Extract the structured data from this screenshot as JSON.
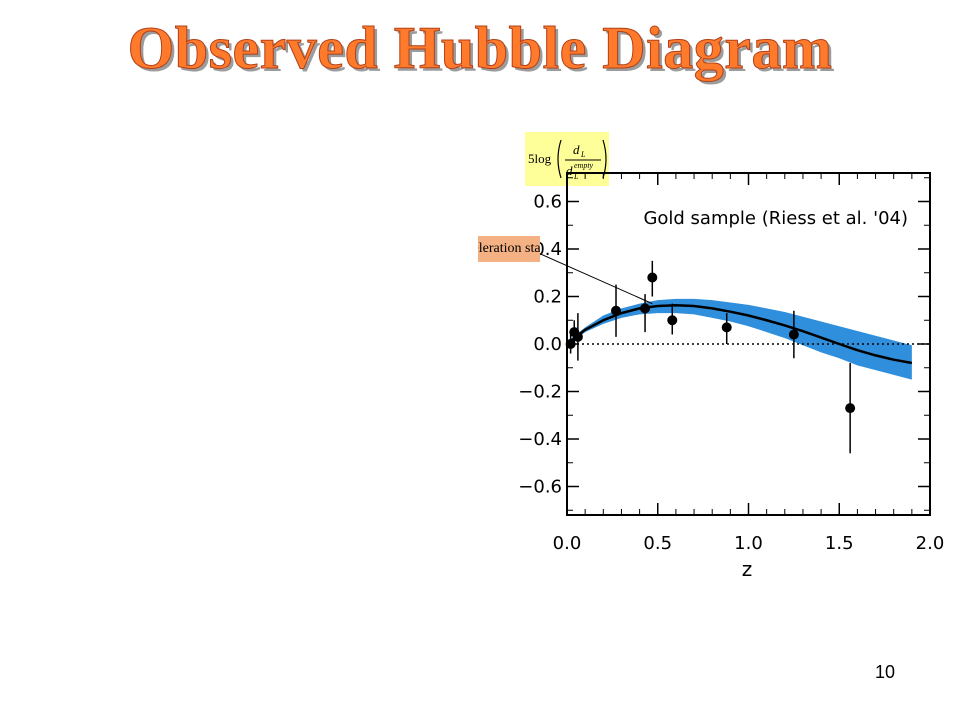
{
  "slide": {
    "title": "Observed Hubble Diagram",
    "page_number": "10",
    "callout_text": "Acceleration starts",
    "ylabel_formula": {
      "prefix": "5log",
      "numerator": "d",
      "numerator_sub": "L",
      "denominator": "d",
      "denominator_sub": "L",
      "denominator_sup": "empty"
    }
  },
  "chart_data": {
    "type": "scatter",
    "title": "Gold sample (Riess et al. '04)",
    "xlabel": "z",
    "ylabel": "5log(dL/dL^empty)",
    "xlim": [
      0.0,
      2.0
    ],
    "ylim": [
      -0.72,
      0.72
    ],
    "x_ticks": [
      "0.0",
      "0.5",
      "1.0",
      "1.5",
      "2.0"
    ],
    "x_tick_values": [
      0.0,
      0.5,
      1.0,
      1.5,
      2.0
    ],
    "y_ticks": [
      "0.6",
      "0.4",
      "0.2",
      "0.0",
      "−0.2",
      "−0.4",
      "−0.6"
    ],
    "y_tick_values": [
      0.6,
      0.4,
      0.2,
      0.0,
      -0.2,
      -0.4,
      -0.6
    ],
    "grid": false,
    "reference_line_y": 0.0,
    "colors": {
      "band": "#2f8fdc",
      "curve": "#000000",
      "frame": "#000000"
    },
    "points": [
      {
        "x": 0.02,
        "y": 0.0,
        "err_lo": 0.04,
        "err_hi": 0.04
      },
      {
        "x": 0.04,
        "y": 0.05,
        "err_lo": 0.05,
        "err_hi": 0.05
      },
      {
        "x": 0.06,
        "y": 0.03,
        "err_lo": 0.1,
        "err_hi": 0.1
      },
      {
        "x": 0.27,
        "y": 0.14,
        "err_lo": 0.11,
        "err_hi": 0.11
      },
      {
        "x": 0.43,
        "y": 0.15,
        "err_lo": 0.1,
        "err_hi": 0.06
      },
      {
        "x": 0.47,
        "y": 0.28,
        "err_lo": 0.08,
        "err_hi": 0.07
      },
      {
        "x": 0.58,
        "y": 0.1,
        "err_lo": 0.06,
        "err_hi": 0.07
      },
      {
        "x": 0.88,
        "y": 0.07,
        "err_lo": 0.07,
        "err_hi": 0.06
      },
      {
        "x": 1.25,
        "y": 0.04,
        "err_lo": 0.1,
        "err_hi": 0.1
      },
      {
        "x": 1.56,
        "y": -0.27,
        "err_lo": 0.19,
        "err_hi": 0.19
      }
    ],
    "model_curve": [
      [
        0.0,
        0.0
      ],
      [
        0.1,
        0.06
      ],
      [
        0.2,
        0.1
      ],
      [
        0.3,
        0.13
      ],
      [
        0.4,
        0.15
      ],
      [
        0.5,
        0.16
      ],
      [
        0.6,
        0.163
      ],
      [
        0.7,
        0.16
      ],
      [
        0.8,
        0.15
      ],
      [
        0.9,
        0.136
      ],
      [
        1.0,
        0.12
      ],
      [
        1.1,
        0.1
      ],
      [
        1.2,
        0.078
      ],
      [
        1.3,
        0.054
      ],
      [
        1.4,
        0.027
      ],
      [
        1.5,
        0.0
      ],
      [
        1.6,
        -0.026
      ],
      [
        1.7,
        -0.048
      ],
      [
        1.8,
        -0.066
      ],
      [
        1.9,
        -0.08
      ]
    ],
    "band_upper": [
      [
        0.0,
        0.01
      ],
      [
        0.1,
        0.07
      ],
      [
        0.2,
        0.12
      ],
      [
        0.3,
        0.15
      ],
      [
        0.4,
        0.17
      ],
      [
        0.5,
        0.185
      ],
      [
        0.6,
        0.19
      ],
      [
        0.7,
        0.19
      ],
      [
        0.8,
        0.185
      ],
      [
        0.9,
        0.175
      ],
      [
        1.0,
        0.165
      ],
      [
        1.1,
        0.15
      ],
      [
        1.2,
        0.135
      ],
      [
        1.3,
        0.115
      ],
      [
        1.4,
        0.095
      ],
      [
        1.5,
        0.075
      ],
      [
        1.6,
        0.055
      ],
      [
        1.7,
        0.035
      ],
      [
        1.8,
        0.015
      ],
      [
        1.9,
        -0.005
      ]
    ],
    "band_lower": [
      [
        0.0,
        -0.01
      ],
      [
        0.1,
        0.05
      ],
      [
        0.2,
        0.085
      ],
      [
        0.3,
        0.11
      ],
      [
        0.4,
        0.125
      ],
      [
        0.5,
        0.13
      ],
      [
        0.6,
        0.13
      ],
      [
        0.7,
        0.125
      ],
      [
        0.8,
        0.11
      ],
      [
        0.9,
        0.095
      ],
      [
        1.0,
        0.075
      ],
      [
        1.1,
        0.05
      ],
      [
        1.2,
        0.025
      ],
      [
        1.3,
        -0.005
      ],
      [
        1.4,
        -0.035
      ],
      [
        1.5,
        -0.06
      ],
      [
        1.6,
        -0.09
      ],
      [
        1.7,
        -0.11
      ],
      [
        1.8,
        -0.13
      ],
      [
        1.9,
        -0.15
      ]
    ],
    "annotation_arrow_target": {
      "x": 0.47,
      "y": 0.17
    }
  }
}
